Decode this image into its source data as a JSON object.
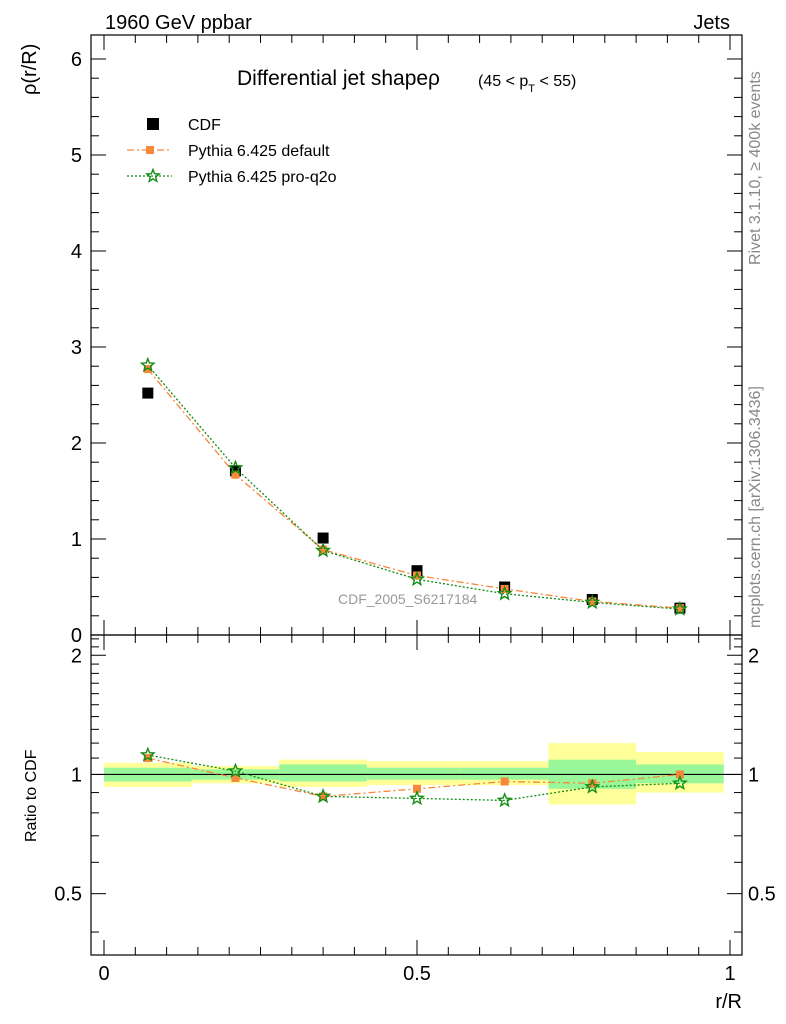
{
  "header": {
    "left": "1960 GeV ppbar",
    "right": "Jets"
  },
  "side_labels": {
    "rivet": "Rivet 3.1.10, ≥ 400k events",
    "mcplots": "mcplots.cern.ch [arXiv:1306.3436]"
  },
  "chart_data": [
    {
      "type": "scatter",
      "title_main": "Differential jet shapeρ",
      "title_range": "(45 < p_T < 55)",
      "title_range_parts": [
        "(45 < p",
        "T",
        " < 55)"
      ],
      "watermark": "CDF_2005_S6217184",
      "xlabel": "r/R",
      "ylabel": "ρ(r/R)",
      "xlim": [
        0,
        1
      ],
      "ylim": [
        0,
        6.25
      ],
      "yticks": [
        "0",
        "1",
        "2",
        "3",
        "4",
        "5",
        "6"
      ],
      "ytick_values": [
        0,
        1,
        2,
        3,
        4,
        5,
        6
      ],
      "legend_position": "top-left",
      "x": [
        0.07,
        0.21,
        0.35,
        0.5,
        0.64,
        0.78,
        0.92
      ],
      "series": [
        {
          "name": "CDF",
          "values": [
            2.52,
            1.71,
            1.01,
            0.67,
            0.5,
            0.37,
            0.28
          ],
          "color": "#000000",
          "marker": "square"
        },
        {
          "name": "Pythia 6.425 default",
          "values": [
            2.77,
            1.67,
            0.89,
            0.62,
            0.48,
            0.35,
            0.28
          ],
          "color": "#f7873a",
          "marker": "square",
          "line": "dashdot"
        },
        {
          "name": "Pythia 6.425 pro-q2o",
          "values": [
            2.81,
            1.74,
            0.88,
            0.58,
            0.43,
            0.34,
            0.27
          ],
          "color": "#138c13",
          "marker": "star",
          "line": "dotted"
        }
      ]
    },
    {
      "type": "line",
      "ylabel": "Ratio to CDF",
      "xlabel": "r/R",
      "xlim": [
        0,
        1
      ],
      "ylim": [
        0.35,
        2.25
      ],
      "yticks": [
        "0.5",
        "1",
        "2"
      ],
      "ytick_values": [
        0.5,
        1,
        2
      ],
      "xticks": [
        "0",
        "0.5",
        "1"
      ],
      "xtick_values": [
        0,
        0.5,
        1
      ],
      "x": [
        0.07,
        0.21,
        0.35,
        0.5,
        0.64,
        0.78,
        0.92
      ],
      "bands": [
        {
          "x0": 0.0,
          "x1": 0.14,
          "yellow": [
            0.93,
            1.07
          ],
          "green": [
            0.96,
            1.04
          ]
        },
        {
          "x0": 0.14,
          "x1": 0.28,
          "yellow": [
            0.95,
            1.05
          ],
          "green": [
            0.97,
            1.03
          ]
        },
        {
          "x0": 0.28,
          "x1": 0.42,
          "yellow": [
            0.93,
            1.09
          ],
          "green": [
            0.96,
            1.06
          ]
        },
        {
          "x0": 0.42,
          "x1": 0.57,
          "yellow": [
            0.94,
            1.08
          ],
          "green": [
            0.97,
            1.04
          ]
        },
        {
          "x0": 0.57,
          "x1": 0.71,
          "yellow": [
            0.94,
            1.08
          ],
          "green": [
            0.97,
            1.04
          ]
        },
        {
          "x0": 0.71,
          "x1": 0.85,
          "yellow": [
            0.84,
            1.2
          ],
          "green": [
            0.92,
            1.09
          ]
        },
        {
          "x0": 0.85,
          "x1": 0.99,
          "yellow": [
            0.9,
            1.14
          ],
          "green": [
            0.95,
            1.06
          ]
        }
      ],
      "series": [
        {
          "name": "Pythia 6.425 default",
          "values": [
            1.1,
            0.98,
            0.88,
            0.92,
            0.96,
            0.95,
            1.0
          ],
          "color": "#f7873a",
          "marker": "square",
          "line": "dashdot"
        },
        {
          "name": "Pythia 6.425 pro-q2o",
          "values": [
            1.12,
            1.02,
            0.88,
            0.87,
            0.86,
            0.93,
            0.95
          ],
          "color": "#138c13",
          "marker": "star",
          "line": "dotted"
        }
      ]
    }
  ]
}
